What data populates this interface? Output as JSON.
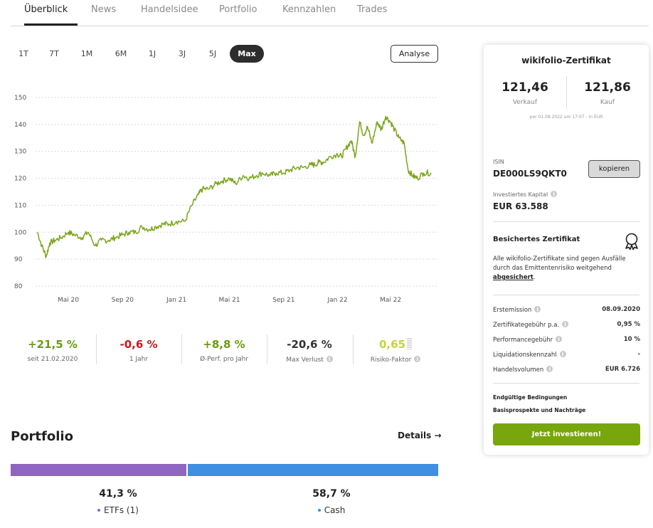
{
  "tabs": [
    "Überblick",
    "News",
    "Handelsidee",
    "Portfolio",
    "Kennzahlen",
    "Trades"
  ],
  "ranges": [
    "1T",
    "7T",
    "1M",
    "6M",
    "1J",
    "3J",
    "5J",
    "Max"
  ],
  "analyse_label": "Analyse",
  "chart_data": {
    "type": "line",
    "y_ticks": [
      "150",
      "140",
      "130",
      "120",
      "110",
      "100",
      "90",
      "80"
    ],
    "ylim": [
      80,
      150
    ],
    "x_ticks": [
      "Mai 20",
      "Sep 20",
      "Jan 21",
      "Mai 21",
      "Sep 21",
      "Jan 22",
      "Mai 22"
    ],
    "x_start": "2020-02-21",
    "x_tick_dates": [
      "2020-05-01",
      "2020-09-01",
      "2021-01-01",
      "2021-05-01",
      "2021-09-01",
      "2022-01-01",
      "2022-05-01"
    ],
    "grid": "horizontal-dotted",
    "line_color": "#7aa61a",
    "series": [
      {
        "x": [
          "2020-02-21",
          "2020-03-02",
          "2020-03-12",
          "2020-03-20",
          "2020-04-01",
          "2020-04-15",
          "2020-05-01",
          "2020-05-15",
          "2020-06-01",
          "2020-06-15",
          "2020-07-01",
          "2020-07-15",
          "2020-08-01",
          "2020-08-15",
          "2020-09-01",
          "2020-09-15",
          "2020-10-01",
          "2020-10-15",
          "2020-11-01",
          "2020-11-15",
          "2020-12-01",
          "2020-12-15",
          "2021-01-01",
          "2021-01-20",
          "2021-02-05",
          "2021-02-20",
          "2021-03-01",
          "2021-03-15",
          "2021-04-01",
          "2021-04-15",
          "2021-05-01",
          "2021-05-15",
          "2021-06-01",
          "2021-06-15",
          "2021-07-01",
          "2021-07-15",
          "2021-08-01",
          "2021-08-15",
          "2021-09-01",
          "2021-09-15",
          "2021-10-01",
          "2021-10-15",
          "2021-11-01",
          "2021-11-10",
          "2021-11-20",
          "2021-12-01",
          "2021-12-15",
          "2022-01-01",
          "2022-01-10",
          "2022-01-20",
          "2022-02-01",
          "2022-02-10",
          "2022-02-20",
          "2022-03-01",
          "2022-03-10",
          "2022-03-20",
          "2022-04-01",
          "2022-04-10",
          "2022-04-20",
          "2022-05-01",
          "2022-05-10",
          "2022-05-20",
          "2022-06-01",
          "2022-06-10",
          "2022-06-20",
          "2022-07-01",
          "2022-07-15",
          "2022-08-01"
        ],
        "y": [
          100,
          95,
          91,
          96,
          97,
          98,
          100,
          99,
          98,
          100,
          95,
          97,
          97,
          98,
          99,
          100,
          100,
          102,
          101,
          102,
          103,
          103,
          104,
          104,
          110,
          114,
          116,
          116,
          118,
          119,
          120,
          118,
          121,
          120,
          121,
          122,
          121,
          122,
          122,
          123,
          124,
          124,
          125,
          125,
          126,
          126,
          128,
          129,
          128,
          131,
          134,
          128,
          141,
          136,
          139,
          133,
          141,
          138,
          143,
          141,
          138,
          135,
          133,
          123,
          121,
          120,
          122,
          122
        ]
      }
    ]
  },
  "kpis": [
    {
      "value": "+21,5 %",
      "label": "seit 21.02.2020",
      "color": "#6a9c0e"
    },
    {
      "value": "-0,6 %",
      "label": "1 Jahr",
      "color": "#d0141a"
    },
    {
      "value": "+8,8 %",
      "label": "Ø-Perf. pro Jahr",
      "color": "#6a9c0e"
    },
    {
      "value": "-20,6 %",
      "label": "Max Verlust",
      "color": "#333333"
    },
    {
      "value": "0,65",
      "label": "Risiko-Faktor",
      "color": "#c4d43b"
    }
  ],
  "portfolio": {
    "title": "Portfolio",
    "details_label": "Details →",
    "allocations": [
      {
        "percent": "41,3 %",
        "label": "ETFs (1)",
        "color": "#8f65c0"
      },
      {
        "percent": "58,7 %",
        "label": "Cash",
        "color": "#3f8fe3"
      }
    ]
  },
  "card": {
    "title": "wikifolio-Zertifikat",
    "sell_price": "121,46",
    "sell_label": "Verkauf",
    "buy_price": "121,86",
    "buy_label": "Kauf",
    "price_note": "per 01.08.2022 um 17:07 - in EUR",
    "isin_label": "ISIN",
    "isin_value": "DE000LS9QKT0",
    "copy_label": "kopieren",
    "capital_label": "Investiertes Kapital",
    "capital_value": "EUR 63.588",
    "secured_title": "Besichertes Zertifikat",
    "secured_text": "Alle wikifolio-Zertifikate sind gegen Ausfälle durch das Emittentenrisiko weitgehend",
    "secured_link": "abgesichert",
    "secured_end": ".",
    "info_rows": [
      {
        "label": "Erstemission",
        "value": "08.09.2020"
      },
      {
        "label": "Zertifikategebühr p.a.",
        "value": "0,95 %"
      },
      {
        "label": "Performancegebühr",
        "value": "10 %"
      },
      {
        "label": "Liquidationskennzahl",
        "value": "-"
      },
      {
        "label": "Handelsvolumen",
        "value": "EUR 6.726"
      }
    ],
    "doc_links": [
      "Endgültige Bedingungen",
      "Basisprospekte und Nachträge"
    ],
    "invest_label": "Jetzt investieren!"
  }
}
